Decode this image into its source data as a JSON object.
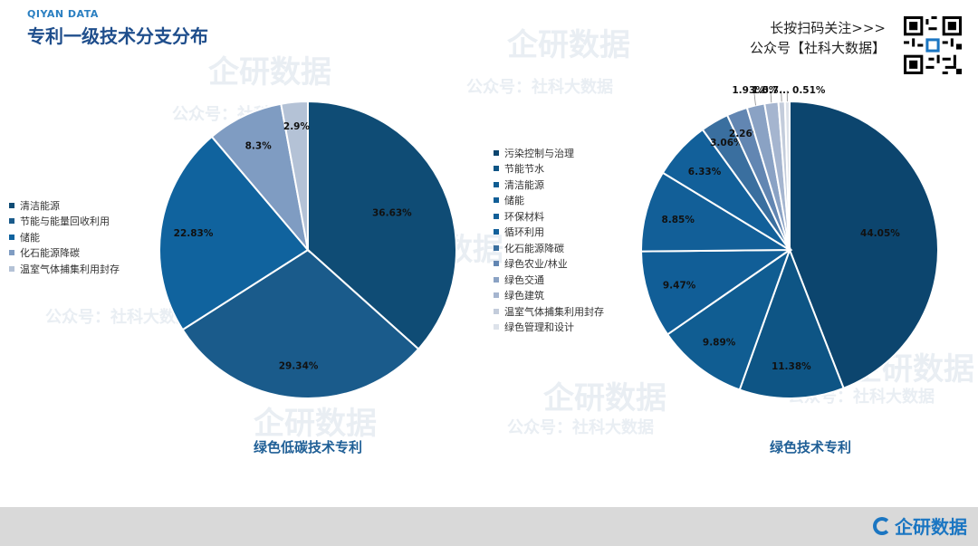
{
  "header": {
    "brand": "QIYAN DATA",
    "title": "专利一级技术分支分布",
    "follow_line1": "长按扫码关注>>>",
    "follow_line2": "公众号【社科大数据】"
  },
  "watermark": {
    "logo_text": "企研数据",
    "sub_text": "公众号：社科大数据"
  },
  "footer": {
    "logo_text": "企研数据"
  },
  "icons": {
    "qr": "qr-code-icon",
    "logo": "qiyan-logo-icon"
  },
  "chart_data": [
    {
      "type": "pie",
      "title": "绿色低碳技术专利",
      "legend_position": "left",
      "categories": [
        "清洁能源",
        "节能与能量回收利用",
        "储能",
        "化石能源降碳",
        "温室气体捕集利用封存"
      ],
      "values": [
        36.63,
        29.34,
        22.83,
        8.3,
        2.9
      ],
      "labels": [
        "36.63%",
        "29.34%",
        "22.83%",
        "8.3%",
        "2.9%"
      ],
      "colors": [
        "#0f4c75",
        "#1a5b8b",
        "#10639e",
        "#7f9cc2",
        "#b4c2d6"
      ]
    },
    {
      "type": "pie",
      "title": "绿色技术专利",
      "legend_position": "left",
      "categories": [
        "污染控制与治理",
        "节能节水",
        "清洁能源",
        "储能",
        "环保材料",
        "循环利用",
        "化石能源降碳",
        "绿色农业/林业",
        "绿色交通",
        "绿色建筑",
        "温室气体捕集利用封存",
        "绿色管理和设计"
      ],
      "values": [
        44.05,
        11.38,
        9.89,
        9.47,
        8.85,
        6.33,
        3.06,
        2.26,
        1.93,
        1.5,
        0.7,
        0.51
      ],
      "labels": [
        "44.05%",
        "11.38%",
        "9.89%",
        "9.47%",
        "8.85%",
        "6.33%",
        "3.06%",
        "2.26%",
        "1.93%",
        "1.5%",
        "0.7...",
        "0.51%"
      ],
      "colors": [
        "#0c456e",
        "#0e5585",
        "#105d92",
        "#115e97",
        "#125f98",
        "#12609a",
        "#3a6f9f",
        "#6286b2",
        "#8aa2c4",
        "#a5b5cf",
        "#c3ccdb",
        "#dde2ea"
      ]
    }
  ]
}
